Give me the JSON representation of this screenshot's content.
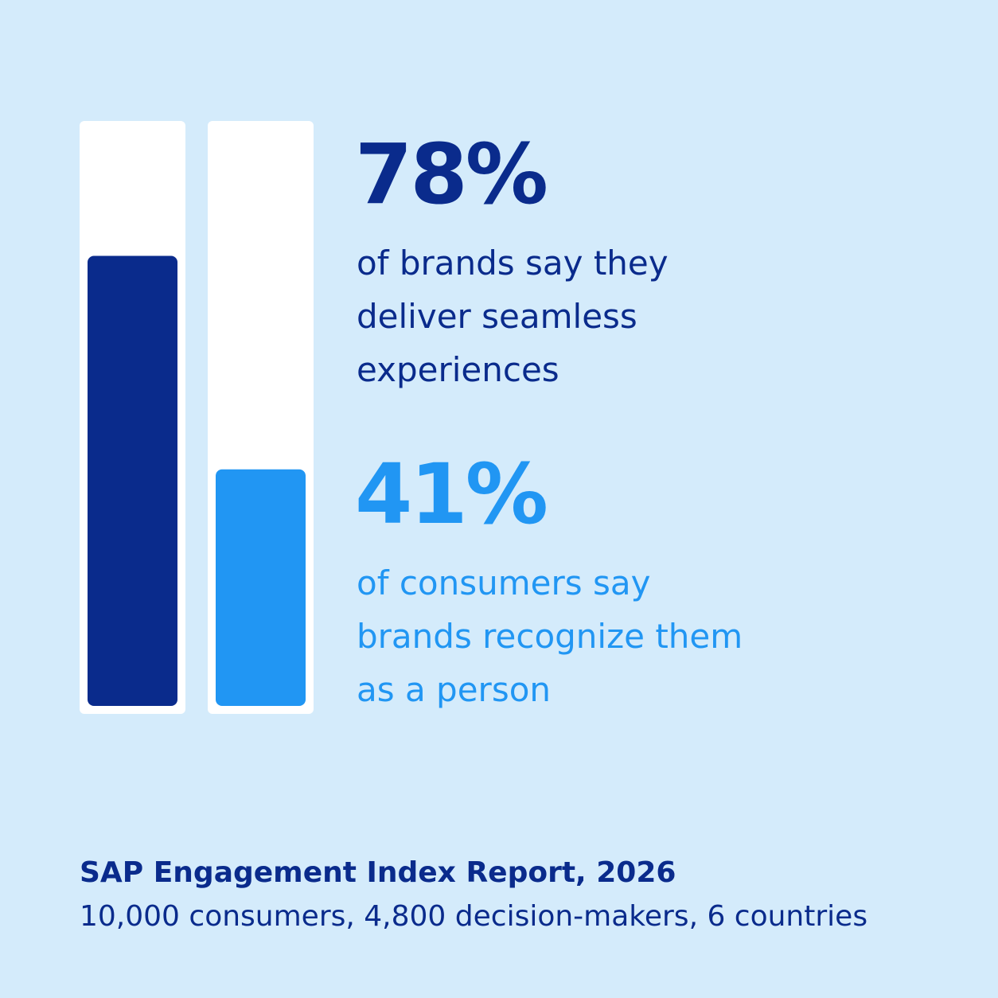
{
  "chart_data": {
    "type": "bar",
    "categories": [
      null,
      null
    ],
    "values": [
      78,
      41
    ],
    "value_labels": [
      "78%",
      "41%"
    ],
    "colors": [
      "#0a2b8c",
      "#2196f3"
    ],
    "descriptions": [
      [
        "of brands say they",
        "deliver seamless",
        "experiences"
      ],
      [
        "of consumers say",
        "brands recognize them",
        "as a person"
      ]
    ],
    "ylim": [
      0,
      100
    ],
    "source": {
      "title": "SAP Engagement Index Report, 2026",
      "note": "10,000 consumers, 4,800 decision-makers, 6 countries"
    }
  }
}
